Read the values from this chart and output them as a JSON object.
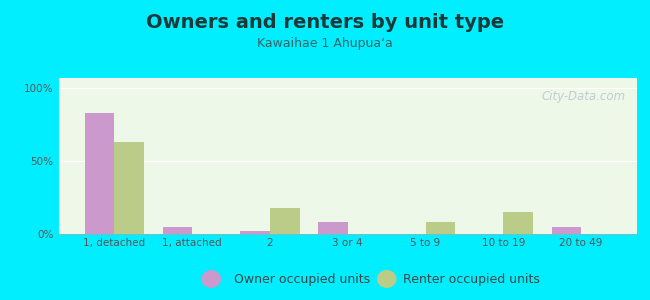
{
  "title": "Owners and renters by unit type",
  "subtitle": "Kawaihae 1 Ahupuaʻa",
  "categories": [
    "1, detached",
    "1, attached",
    "2",
    "3 or 4",
    "5 to 9",
    "10 to 19",
    "20 to 49"
  ],
  "owner_values": [
    83,
    5,
    2,
    8,
    0,
    0,
    5
  ],
  "renter_values": [
    63,
    0,
    18,
    0,
    8,
    15,
    0
  ],
  "owner_color": "#cc99cc",
  "renter_color": "#bbcc88",
  "background_color": "#00eeff",
  "plot_bg_color": "#eef8e8",
  "yticks": [
    0,
    50,
    100
  ],
  "ylim": [
    0,
    107
  ],
  "bar_width": 0.38,
  "title_fontsize": 14,
  "subtitle_fontsize": 9,
  "legend_fontsize": 9,
  "tick_fontsize": 7.5,
  "watermark_text": "City-Data.com"
}
